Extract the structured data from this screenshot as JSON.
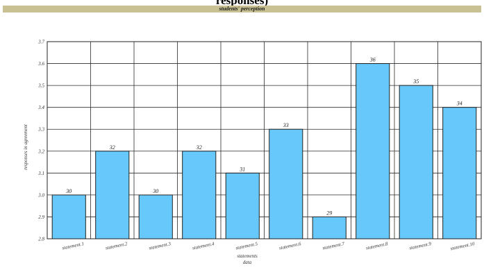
{
  "header": {
    "title_fragment": "responses)",
    "band_label": "students' perception"
  },
  "chart_data": {
    "type": "bar",
    "categories": [
      "statement.1",
      "statement.2",
      "statement.3",
      "statement.4",
      "statement.5",
      "statement.6",
      "statement.7",
      "statement.8",
      "statement.9",
      "statement.10"
    ],
    "values": [
      3.0,
      3.2,
      3.0,
      3.2,
      3.1,
      3.3,
      2.9,
      3.6,
      3.5,
      3.4
    ],
    "data_labels": [
      "30",
      "32",
      "30",
      "32",
      "31",
      "33",
      "29",
      "36",
      "35",
      "34"
    ],
    "ylim": [
      2.8,
      3.7
    ],
    "yticks": [
      2.8,
      2.9,
      3.0,
      3.1,
      3.2,
      3.3,
      3.4,
      3.5,
      3.6,
      3.7
    ],
    "ytick_labels": [
      "2.8",
      "2.9",
      "3.0",
      "3.1",
      "3.2",
      "3.3",
      "3.4",
      "3.5",
      "3.6",
      "3.7"
    ],
    "xlabel_line1": "statements",
    "xlabel_line2": "data",
    "ylabel": "responses in agreement",
    "grid": true,
    "bar_color": "#66c8fb",
    "bar_edge": "#222222"
  }
}
